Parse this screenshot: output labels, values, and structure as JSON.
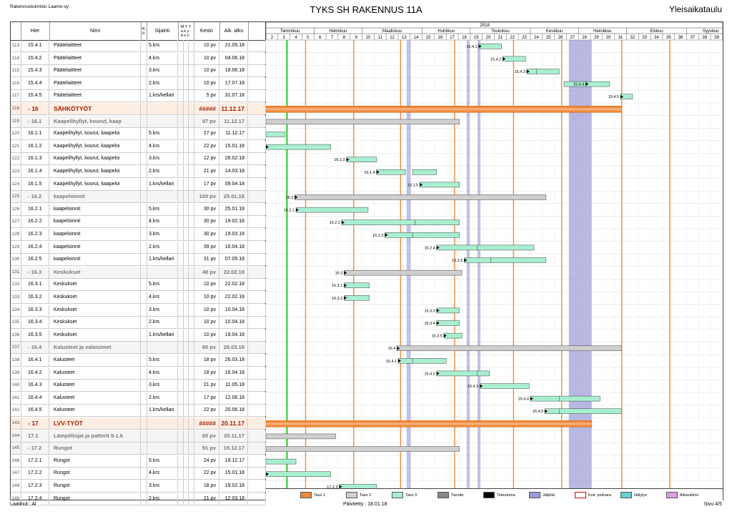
{
  "header": {
    "company": "Rakennustoimisto Laamo oy",
    "title": "TYKS SH RAKENNUS 11A",
    "right": "Yleisaikataulu"
  },
  "columns": {
    "num": "",
    "hier": "Hier",
    "name": "Nimi",
    "ko": "K\no",
    "location": "Sijainti",
    "myt": "M Y T\na k y\nä s o",
    "duration": "Kesto",
    "start": "Aik. alku"
  },
  "timeline": {
    "year": "2018",
    "months": [
      "Tammikuu",
      "Helmikuu",
      "Maaliskuu",
      "Huhtikuu",
      "Toukokuu",
      "Kesäkuu",
      "Heinäkuu",
      "Elokuu",
      "Syyskuu"
    ],
    "weeks": [
      "2",
      "3",
      "4",
      "5",
      "6",
      "7",
      "8",
      "9",
      "10",
      "11",
      "12",
      "13",
      "14",
      "15",
      "16",
      "17",
      "18",
      "19",
      "20",
      "21",
      "22",
      "23",
      "24",
      "25",
      "26",
      "27",
      "28",
      "29",
      "30",
      "31",
      "32",
      "33",
      "34",
      "35",
      "36",
      "37",
      "38",
      "39"
    ]
  },
  "rows": [
    {
      "n": "113",
      "hier": "15.4.1",
      "name": "Päätelaitteet",
      "loc": "5.krs",
      "dur": "10 pv",
      "start": "21.05.18",
      "level": 3,
      "bar": "15.4.1"
    },
    {
      "n": "114",
      "hier": "15.4.2",
      "name": "Päätelaitteet",
      "loc": "4.krs",
      "dur": "10 pv",
      "start": "04.06.18",
      "level": 3,
      "bar": "15.4.2"
    },
    {
      "n": "115",
      "hier": "15.4.3",
      "name": "Päätelaitteet",
      "loc": "3.krs",
      "dur": "10 pv",
      "start": "18.06.18",
      "level": 3,
      "bar": "15.4.3"
    },
    {
      "n": "116",
      "hier": "15.4.4",
      "name": "Päätelaitteet",
      "loc": "2.krs",
      "dur": "10 pv",
      "start": "17.07.18",
      "level": 3,
      "bar": "15.4.4"
    },
    {
      "n": "117",
      "hier": "15.4.5",
      "name": "Päätelaitteet",
      "loc": "1.krs/kellari",
      "dur": "5 pv",
      "start": "31.07.18",
      "level": 3,
      "bar": "15.4.5"
    },
    {
      "n": "118",
      "hier": "- 16",
      "name": "SÄHKÖTYÖT",
      "loc": "",
      "dur": "#####",
      "start": "11.12.17",
      "level": 1,
      "bar": ""
    },
    {
      "n": "119",
      "hier": "- 16.1",
      "name": "Kaapelihyllyt, kourut, kaap",
      "loc": "",
      "dur": "97 pv",
      "start": "11.12.17",
      "level": 2,
      "bar": ""
    },
    {
      "n": "120",
      "hier": "16.1.1",
      "name": "Kaapelihyllyt, kourut, kaapeloi",
      "loc": "5.krs",
      "dur": "27 pv",
      "start": "11.12.17",
      "level": 3,
      "bar": ""
    },
    {
      "n": "121",
      "hier": "16.1.2",
      "name": "Kaapelihyllyt, kourut, kaapeloi",
      "loc": "4.krs",
      "dur": "22 pv",
      "start": "15.01.18",
      "level": 3,
      "bar": "16.1.2"
    },
    {
      "n": "122",
      "hier": "16.1.3",
      "name": "Kaapelihyllyt, kourut, kaapeloi",
      "loc": "3.krs",
      "dur": "12 pv",
      "start": "26.02.18",
      "level": 3,
      "bar": "16.1.3"
    },
    {
      "n": "123",
      "hier": "16.1.4",
      "name": "Kaapelihyllyt, kourut, kaapeloi",
      "loc": "2.krs",
      "dur": "21 pv",
      "start": "14.03.18",
      "level": 3,
      "bar": "16.1.4"
    },
    {
      "n": "124",
      "hier": "16.1.5",
      "name": "Kaapelihyllyt, kourut, kaapeloi",
      "loc": "1.krs/kellari",
      "dur": "17 pv",
      "start": "09.04.18",
      "level": 3,
      "bar": "16.1.5"
    },
    {
      "n": "125",
      "hier": "- 16.2",
      "name": "kaapeloinnit",
      "loc": "",
      "dur": "100 pv",
      "start": "25.01.18",
      "level": 2,
      "bar": "16.2"
    },
    {
      "n": "126",
      "hier": "16.2.1",
      "name": "kaapeloinnit",
      "loc": "5.krs",
      "dur": "30 pv",
      "start": "25.01.18",
      "level": 3,
      "bar": "16.2.1"
    },
    {
      "n": "127",
      "hier": "16.2.2",
      "name": "kaapeloinnit",
      "loc": "4.krs",
      "dur": "30 pv",
      "start": "19.02.18",
      "level": 3,
      "bar": "16.2.2"
    },
    {
      "n": "128",
      "hier": "16.2.3",
      "name": "kaapeloinnit",
      "loc": "3.krs",
      "dur": "30 pv",
      "start": "19.03.18",
      "level": 3,
      "bar": "16.2.3"
    },
    {
      "n": "129",
      "hier": "16.2.4",
      "name": "kaapeloinnit",
      "loc": "2.krs",
      "dur": "39 pv",
      "start": "16.04.18",
      "level": 3,
      "bar": "16.2.4"
    },
    {
      "n": "130",
      "hier": "16.2.5",
      "name": "kaapeloinnit",
      "loc": "1.krs/kellari",
      "dur": "31 pv",
      "start": "07.05.18",
      "level": 3,
      "bar": "16.2.5"
    },
    {
      "n": "131",
      "hier": "- 16.3",
      "name": "Keskukset",
      "loc": "",
      "dur": "48 pv",
      "start": "22.02.18",
      "level": 2,
      "bar": "16.3"
    },
    {
      "n": "132",
      "hier": "16.3.1",
      "name": "Keskukset",
      "loc": "5.krs",
      "dur": "10 pv",
      "start": "22.02.18",
      "level": 3,
      "bar": "16.3.1"
    },
    {
      "n": "133",
      "hier": "16.3.2",
      "name": "Keskukset",
      "loc": "4.krs",
      "dur": "10 pv",
      "start": "22.02.18",
      "level": 3,
      "bar": "16.3.2"
    },
    {
      "n": "134",
      "hier": "16.3.3",
      "name": "Keskukset",
      "loc": "3.krs",
      "dur": "10 pv",
      "start": "10.04.18",
      "level": 3,
      "bar": "16.3.3"
    },
    {
      "n": "135",
      "hier": "16.3.4",
      "name": "Keskukset",
      "loc": "2.krs",
      "dur": "10 pv",
      "start": "10.04.18",
      "level": 3,
      "bar": "16.3.4"
    },
    {
      "n": "136",
      "hier": "16.3.5",
      "name": "Keskukset",
      "loc": "1.krs/kellari",
      "dur": "10 pv",
      "start": "19.04.18",
      "level": 3,
      "bar": "16.3.5"
    },
    {
      "n": "137",
      "hier": "- 16.4",
      "name": "Kalusteet ja valaisimet",
      "loc": "",
      "dur": "80 pv",
      "start": "26.03.18",
      "level": 2,
      "bar": "16.4"
    },
    {
      "n": "138",
      "hier": "16.4.1",
      "name": "Kalusteet",
      "loc": "5.krs",
      "dur": "18 pv",
      "start": "26.03.18",
      "level": 3,
      "bar": "16.4.1"
    },
    {
      "n": "139",
      "hier": "16.4.2",
      "name": "Kalusteet",
      "loc": "4.krs",
      "dur": "18 pv",
      "start": "16.04.18",
      "level": 3,
      "bar": "16.4.2"
    },
    {
      "n": "140",
      "hier": "16.4.3",
      "name": "Kalusteet",
      "loc": "3.krs",
      "dur": "21 pv",
      "start": "11.05.18",
      "level": 3,
      "bar": "16.4.3"
    },
    {
      "n": "141",
      "hier": "16.4.4",
      "name": "Kalusteet",
      "loc": "2.krs",
      "dur": "17 pv",
      "start": "12.06.18",
      "level": 3,
      "bar": "16.4.4"
    },
    {
      "n": "142",
      "hier": "16.4.5",
      "name": "Kalusteet",
      "loc": "1.krs/kellari",
      "dur": "22 pv",
      "start": "20.06.18",
      "level": 3,
      "bar": "16.4.5"
    },
    {
      "n": "143",
      "hier": "- 17",
      "name": "LVV-TYÖT",
      "loc": "",
      "dur": "#####",
      "start": "20.11.17",
      "level": 1,
      "bar": ""
    },
    {
      "n": "144",
      "hier": "17.1",
      "name": "Lämpölinjat ja patterit 5-1.k",
      "loc": "",
      "dur": "60 pv",
      "start": "20.11.17",
      "level": 2,
      "bar": ""
    },
    {
      "n": "145",
      "hier": "- 17.2",
      "name": "Rungot",
      "loc": "",
      "dur": "91 pv",
      "start": "19.12.17",
      "level": 2,
      "bar": ""
    },
    {
      "n": "146",
      "hier": "17.2.1",
      "name": "Rungot",
      "loc": "5.krs",
      "dur": "24 pv",
      "start": "19.12.17",
      "level": 3,
      "bar": ""
    },
    {
      "n": "147",
      "hier": "17.2.2",
      "name": "Rungot",
      "loc": "4.krs",
      "dur": "22 pv",
      "start": "15.01.18",
      "level": 3,
      "bar": "17.2.2"
    },
    {
      "n": "148",
      "hier": "17.2.3",
      "name": "Rungot",
      "loc": "3.krs",
      "dur": "18 pv",
      "start": "19.02.18",
      "level": 3,
      "bar": "17.2.3"
    },
    {
      "n": "149",
      "hier": "17.2.4",
      "name": "Rungot",
      "loc": "2.krs",
      "dur": "21 pv",
      "start": "12.03.18",
      "level": 3,
      "bar": "17.2.4"
    }
  ],
  "legend": [
    "Taso 1",
    "Taso 2",
    "Taso 3",
    "Tavoite",
    "Toteutuma",
    "Jäljellä",
    "Kok. peilvara",
    "Hälytys",
    "Aikavälirivi"
  ],
  "footer": {
    "left": "Laatinut : Al",
    "mid": "Päivitetty : 18.01.18",
    "right": "Sivu 4/5"
  },
  "colors": {
    "taso1": "#f08a3a",
    "taso2": "#cfcfcf",
    "taso3": "#a8efd0",
    "tavoite": "#888888",
    "toteutuma": "#000000",
    "jaljella": "#9a9ad6",
    "kokpeli": "#ffffff",
    "halytys": "#66d0d0",
    "aikavali": "#d9a0e0"
  }
}
